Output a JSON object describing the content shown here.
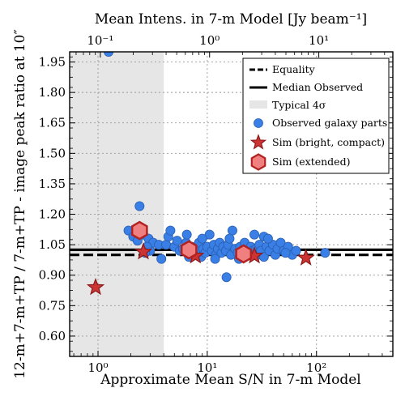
{
  "chart_data": {
    "type": "scatter",
    "xlabel": "Approximate Mean S/N in 7-m Model",
    "xlabel_top": "Mean Intens. in 7-m Model [Jy beam⁻¹]",
    "ylabel": "12-m+7-m+TP / 7-m+TP - image peak ratio at 10″",
    "x_scale": "log",
    "xlim": [
      0.55,
      500
    ],
    "ylim": [
      0.5,
      2.0
    ],
    "x_ticks": [
      1,
      10,
      100
    ],
    "x_tick_labels": [
      "10⁰",
      "10¹",
      "10²"
    ],
    "x_top_ticks_intensity": [
      0.1,
      1,
      10
    ],
    "x_top_tick_labels": [
      "10⁻¹",
      "10⁰",
      "10¹"
    ],
    "sn_per_jy_beam": 10.5,
    "y_ticks": [
      0.6,
      0.75,
      0.9,
      1.05,
      1.2,
      1.35,
      1.5,
      1.65,
      1.8,
      1.95
    ],
    "y_tick_labels": [
      "0.60",
      "0.75",
      "0.90",
      "1.05",
      "1.20",
      "1.35",
      "1.50",
      "1.65",
      "1.80",
      "1.95"
    ],
    "grid": true,
    "legend_placement": "top-right",
    "shaded_region": {
      "name": "Typical 4σ",
      "x0": 0.55,
      "x1": 4.0,
      "color": "#e6e6e6"
    },
    "lines": [
      {
        "name": "Equality",
        "y": 1.0,
        "style": "dashed",
        "color": "#000000"
      },
      {
        "name": "Median Observed",
        "y": 1.025,
        "style": "solid",
        "color": "#000000"
      }
    ],
    "series": [
      {
        "name": "Observed galaxy parts",
        "marker": "circle",
        "color": "#3a7fe6",
        "points": [
          [
            1.25,
            2.0
          ],
          [
            2.4,
            1.24
          ],
          [
            1.9,
            1.12
          ],
          [
            2.1,
            1.09
          ],
          [
            2.3,
            1.07
          ],
          [
            2.6,
            1.1
          ],
          [
            2.9,
            1.08
          ],
          [
            3.2,
            1.06
          ],
          [
            3.6,
            1.05
          ],
          [
            3.0,
            1.02
          ],
          [
            2.8,
            1.04
          ],
          [
            2.7,
            1.01
          ],
          [
            3.8,
            0.98
          ],
          [
            4.2,
            1.05
          ],
          [
            4.4,
            1.09
          ],
          [
            4.6,
            1.12
          ],
          [
            5.0,
            1.04
          ],
          [
            5.3,
            1.07
          ],
          [
            5.6,
            1.02
          ],
          [
            6.0,
            1.03
          ],
          [
            6.4,
            1.06
          ],
          [
            6.8,
            0.99
          ],
          [
            7.2,
            1.04
          ],
          [
            7.6,
            1.0
          ],
          [
            8.0,
            1.02
          ],
          [
            8.4,
            1.06
          ],
          [
            8.8,
            0.99
          ],
          [
            9.2,
            1.03
          ],
          [
            9.6,
            1.01
          ],
          [
            10.0,
            1.04
          ],
          [
            10.5,
            1.1
          ],
          [
            11.0,
            1.02
          ],
          [
            11.5,
            1.05
          ],
          [
            12.0,
            1.0
          ],
          [
            12.5,
            1.03
          ],
          [
            13.0,
            1.06
          ],
          [
            13.5,
            1.01
          ],
          [
            14.0,
            1.04
          ],
          [
            14.8,
            1.02
          ],
          [
            15.5,
            1.05
          ],
          [
            16.5,
            1.0
          ],
          [
            17.0,
            1.12
          ],
          [
            18.0,
            1.03
          ],
          [
            19.0,
            1.01
          ],
          [
            19.5,
            0.98
          ],
          [
            20.0,
            1.04
          ],
          [
            21.0,
            1.02
          ],
          [
            22.0,
            1.06
          ],
          [
            23.0,
            1.01
          ],
          [
            24.0,
            1.0
          ],
          [
            25.0,
            1.04
          ],
          [
            26.0,
            1.02
          ],
          [
            27.0,
            1.1
          ],
          [
            28.0,
            1.03
          ],
          [
            29.0,
            1.0
          ],
          [
            30.0,
            1.05
          ],
          [
            31.0,
            1.02
          ],
          [
            33.0,
            0.99
          ],
          [
            35.0,
            1.04
          ],
          [
            37.0,
            1.02
          ],
          [
            40.0,
            1.05
          ],
          [
            42.0,
            1.0
          ],
          [
            44.0,
            1.03
          ],
          [
            47.0,
            1.06
          ],
          [
            50.0,
            1.02
          ],
          [
            55.0,
            1.04
          ],
          [
            60.0,
            1.0
          ],
          [
            65.0,
            1.02
          ],
          [
            33.0,
            1.09
          ],
          [
            15.0,
            0.89
          ],
          [
            120.0,
            1.01
          ],
          [
            9.0,
            1.08
          ],
          [
            6.5,
            1.1
          ],
          [
            11.8,
            0.98
          ],
          [
            16.0,
            1.08
          ],
          [
            36.0,
            1.08
          ],
          [
            52.0,
            1.01
          ]
        ]
      },
      {
        "name": "Sim (bright, compact)",
        "marker": "star",
        "color": "#cc3333",
        "points": [
          [
            0.95,
            0.84
          ],
          [
            2.6,
            1.015
          ],
          [
            7.8,
            0.995
          ],
          [
            27.0,
            0.995
          ],
          [
            80.0,
            0.985
          ]
        ]
      },
      {
        "name": "Sim (extended)",
        "marker": "hexagon",
        "color": "#f08080",
        "edge_color": "#b22222",
        "points": [
          [
            2.4,
            1.12
          ],
          [
            6.8,
            1.025
          ],
          [
            21.5,
            1.005
          ]
        ]
      }
    ]
  }
}
